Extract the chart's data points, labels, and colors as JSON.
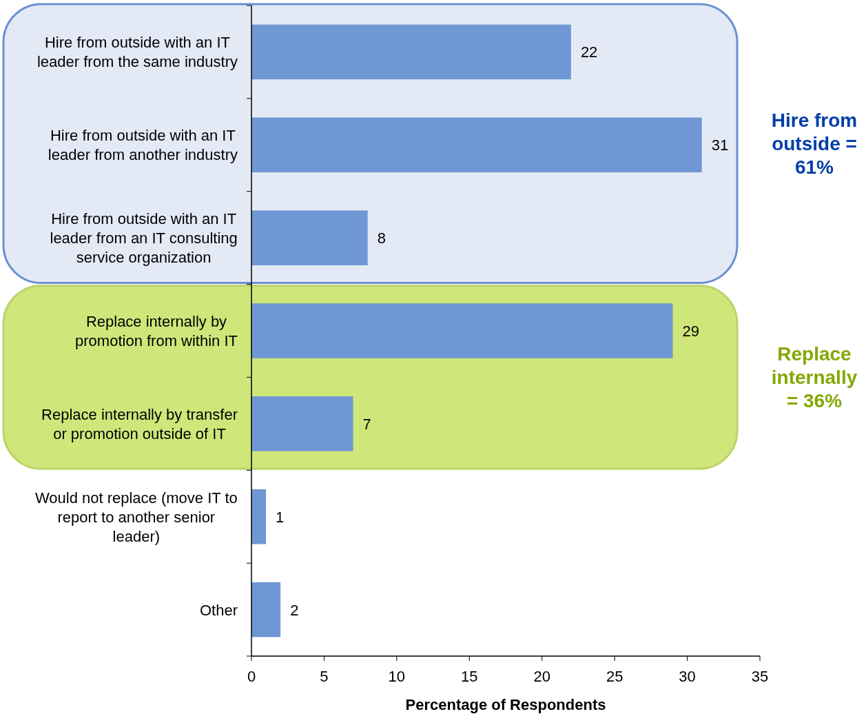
{
  "chart_data": {
    "type": "bar",
    "orientation": "horizontal",
    "xlabel": "Percentage of Respondents",
    "categories": [
      "Hire from outside with an IT leader from the same industry",
      "Hire from outside with an IT leader from another industry",
      "Hire from outside with an IT leader from an IT consulting service organization",
      "Replace internally by promotion from within IT",
      "Replace internally by transfer or promotion outside of IT",
      "Would not replace (move IT to report to another senior leader)",
      "Other"
    ],
    "values": [
      22,
      31,
      8,
      29,
      7,
      1,
      2
    ],
    "color": "#6f97d3",
    "data_labels": true,
    "xlim": [
      0,
      35
    ],
    "xticks": [
      0,
      5,
      10,
      15,
      20,
      25,
      30,
      35
    ],
    "bands": [
      {
        "axis": "y",
        "from": "Hire from outside with an IT leader from the same industry",
        "to": "Hire from outside with an IT leader from an IT consulting service organization",
        "label": "Hire from outside = 61%",
        "color": "#e3eaf6"
      },
      {
        "axis": "y",
        "from": "Replace internally by promotion from within IT",
        "to": "Replace internally by transfer or promotion outside of IT",
        "label": "Replace internally = 36%",
        "color": "#cfe67a"
      }
    ]
  }
}
